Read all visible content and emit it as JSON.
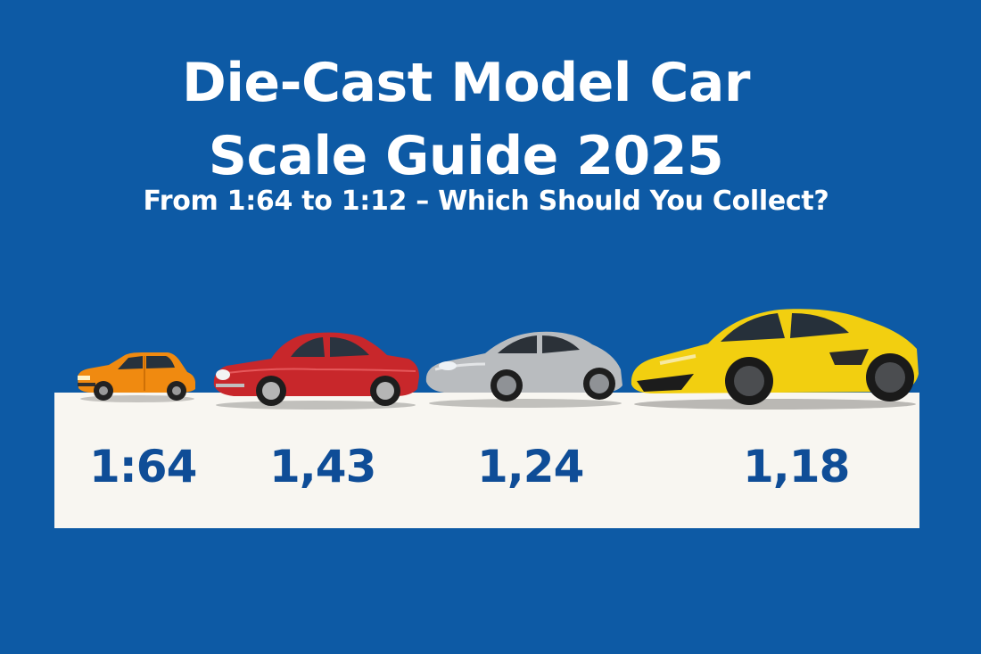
{
  "title": {
    "line1": "Die-Cast Model Car",
    "line2": "Scale Guide 2025"
  },
  "subtitle": "From 1:64 to 1:12 – Which Should You Collect?",
  "scales": [
    {
      "label": "1:64",
      "car_color": "#f08a10",
      "icon": "hatchback-car-icon"
    },
    {
      "label": "1,43",
      "car_color": "#c8272b",
      "icon": "classic-coupe-car-icon"
    },
    {
      "label": "1,24",
      "car_color": "#b9bcbf",
      "icon": "sports-coupe-car-icon"
    },
    {
      "label": "1,18",
      "car_color": "#f2cf10",
      "icon": "supercar-icon"
    }
  ],
  "colors": {
    "background": "#0d5aa5",
    "panel": "#f8f6f1",
    "scale_text": "#0f4d97"
  }
}
